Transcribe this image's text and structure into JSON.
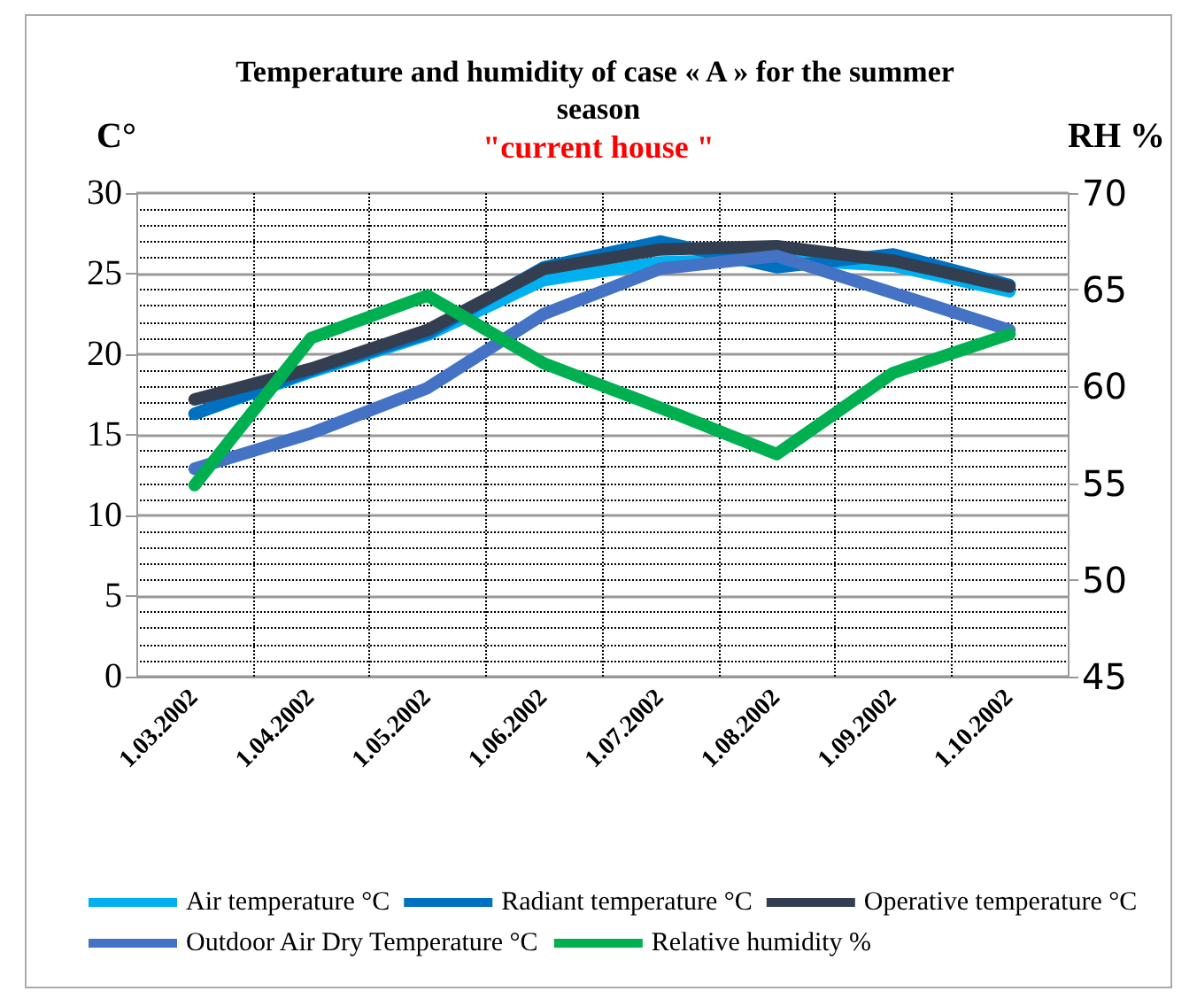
{
  "chart_data": {
    "type": "line",
    "title": "Temperature and humidity of case « A » for the summer season",
    "subtitle": "\"current house \"",
    "ylabel": "C°",
    "y2label": "RH %",
    "categories": [
      "1.03.2002",
      "1.04.2002",
      "1.05.2002",
      "1.06.2002",
      "1.07.2002",
      "1.08.2002",
      "1.09.2002",
      "1.10.2002"
    ],
    "series": [
      {
        "name": "Air temperature °C",
        "color": "#00b0f0",
        "values": [
          16.3,
          18.9,
          21.2,
          24.6,
          25.7,
          25.9,
          25.5,
          23.9
        ]
      },
      {
        "name": "Radiant temperature °C",
        "color": "#0070c0",
        "values": [
          16.3,
          19.0,
          21.3,
          25.4,
          27.0,
          25.4,
          26.2,
          24.3
        ]
      },
      {
        "name": "Operative temperature °C",
        "color": "#333f50",
        "values": [
          17.2,
          19.1,
          21.5,
          25.3,
          26.5,
          26.7,
          25.8,
          24.2
        ]
      },
      {
        "name": "Outdoor Air Dry Temperature °C",
        "color": "#4472c4",
        "values": [
          12.9,
          15.1,
          17.9,
          22.5,
          25.3,
          26.1,
          23.8,
          21.5
        ]
      },
      {
        "name": "Relative humidity %",
        "color": "#00b050",
        "axis": "y2",
        "values": [
          54.9,
          62.5,
          64.7,
          61.2,
          58.9,
          56.5,
          60.7,
          62.7
        ]
      }
    ],
    "ylim": [
      0,
      30
    ],
    "yticks": [
      0,
      5,
      10,
      15,
      20,
      25,
      30
    ],
    "y2lim": [
      45,
      70
    ],
    "y2ticks": [
      45,
      50,
      55,
      60,
      65,
      70
    ],
    "grid": true,
    "legend": "bottom",
    "marker": "none",
    "line_style": "solid"
  }
}
